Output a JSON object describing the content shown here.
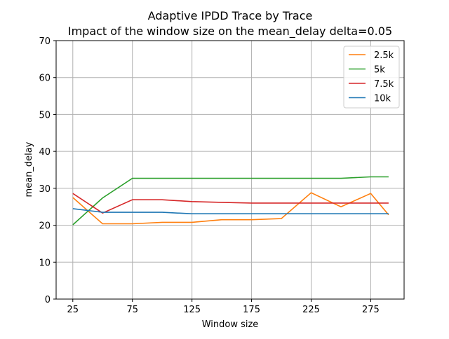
{
  "chart_data": {
    "type": "line",
    "title": "Adaptive IPDD Trace by Trace",
    "subtitle": "Impact of the window size on the mean_delay delta=0.05",
    "xlabel": "Window size",
    "ylabel": "mean_delay",
    "xlim": [
      11,
      303
    ],
    "ylim": [
      0,
      70
    ],
    "xticks": [
      25,
      75,
      125,
      175,
      225,
      275
    ],
    "yticks": [
      0,
      10,
      20,
      30,
      40,
      50,
      60,
      70
    ],
    "grid": true,
    "legend_position": "top-right",
    "x": [
      25,
      50,
      75,
      100,
      125,
      150,
      175,
      200,
      225,
      250,
      275,
      290
    ],
    "series": [
      {
        "name": "2.5k",
        "color": "#ff7f0e",
        "values": [
          27.5,
          20.4,
          20.4,
          20.8,
          20.8,
          21.5,
          21.5,
          21.8,
          28.8,
          25.0,
          28.6,
          22.8
        ]
      },
      {
        "name": "5k",
        "color": "#2ca02c",
        "values": [
          20.1,
          27.4,
          32.7,
          32.7,
          32.7,
          32.7,
          32.7,
          32.7,
          32.7,
          32.7,
          33.1,
          33.1
        ]
      },
      {
        "name": "7.5k",
        "color": "#d62728",
        "values": [
          28.6,
          23.3,
          26.9,
          26.9,
          26.4,
          26.2,
          26.0,
          26.0,
          26.0,
          26.0,
          26.0,
          26.0
        ]
      },
      {
        "name": "10k",
        "color": "#1f77b4",
        "values": [
          24.5,
          23.5,
          23.5,
          23.5,
          23.1,
          23.1,
          23.1,
          23.1,
          23.1,
          23.1,
          23.1,
          23.1
        ]
      }
    ]
  }
}
